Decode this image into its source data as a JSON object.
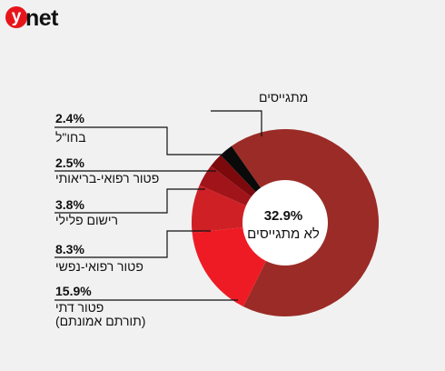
{
  "brand": {
    "logo_letter": "y",
    "logo_rest": "net",
    "accent": "#e8141b"
  },
  "chart_data": {
    "type": "pie",
    "style": "donut",
    "center_value": "32.9%",
    "center_label": "לא מתגייסים",
    "slices": [
      {
        "key": "enlisted",
        "label": "מתגייסים",
        "value": 67.1,
        "color": "#9b2b26"
      },
      {
        "key": "religious",
        "label": "פטור דתי",
        "sublabel": "(תורתם אמונתם)",
        "value": 15.9,
        "value_label": "15.9%",
        "color": "#ee1b24"
      },
      {
        "key": "mental",
        "label": "פטור רפואי-נפשי",
        "value": 8.3,
        "value_label": "8.3%",
        "color": "#cf2026"
      },
      {
        "key": "criminal",
        "label": "רישום פלילי",
        "value": 3.8,
        "value_label": "3.8%",
        "color": "#a1141a"
      },
      {
        "key": "medical",
        "label": "פטור רפואי-בריאותי",
        "value": 2.5,
        "value_label": "2.5%",
        "color": "#7c0a0d"
      },
      {
        "key": "abroad",
        "label": "בחו\"ל",
        "value": 2.4,
        "value_label": "2.4%",
        "color": "#0a0a0a"
      }
    ]
  }
}
